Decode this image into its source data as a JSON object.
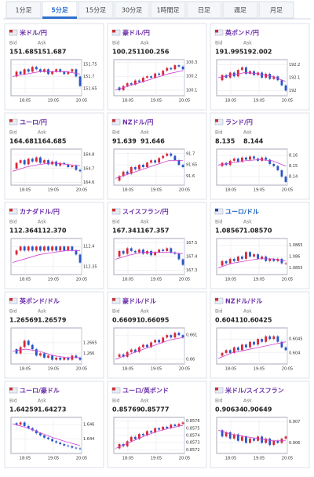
{
  "tabs": [
    "1分足",
    "5分足",
    "15分足",
    "30分足",
    "1時間足",
    "日足",
    "週足",
    "月足"
  ],
  "cards": [
    {
      "title": "米ドル/円",
      "bid_label": "Bid",
      "ask_label": "Ask",
      "bid": "151.685",
      "ask": "151.687",
      "ylim": [
        151.62,
        151.77
      ],
      "yticks": [
        151.75,
        151.7,
        151.65
      ],
      "xticks": [
        "18:05",
        "19:05",
        "20:05"
      ],
      "closes": [
        151.7,
        151.72,
        151.71,
        151.73,
        151.72,
        151.74,
        151.73,
        151.72,
        151.73,
        151.71,
        151.72,
        151.73,
        151.72,
        151.71,
        151.72,
        151.73,
        151.7,
        151.66
      ],
      "ma": [
        151.7,
        151.71,
        151.72,
        151.72,
        151.72,
        151.71
      ]
    },
    {
      "title": "豪ドル/円",
      "bid_label": "Bid",
      "ask_label": "Ask",
      "bid": "100.251",
      "ask": "100.256",
      "ylim": [
        100.06,
        100.32
      ],
      "yticks": [
        100.3,
        100.2,
        100.1
      ],
      "xticks": [
        "18:05",
        "19:05",
        "20:05"
      ],
      "closes": [
        100.12,
        100.1,
        100.13,
        100.15,
        100.14,
        100.17,
        100.16,
        100.19,
        100.2,
        100.19,
        100.22,
        100.21,
        100.24,
        100.26,
        100.25,
        100.28,
        100.27,
        100.25
      ],
      "ma": [
        100.1,
        100.13,
        100.16,
        100.19,
        100.22,
        100.24
      ]
    },
    {
      "title": "英ポンド/円",
      "bid_label": "Bid",
      "ask_label": "Ask",
      "bid": "191.995",
      "ask": "192.002",
      "ylim": [
        191.96,
        192.24
      ],
      "yticks": [
        192.2,
        192.1,
        192
      ],
      "xticks": [
        "18:05",
        "19:05",
        "20:05"
      ],
      "closes": [
        192.08,
        192.12,
        192.1,
        192.14,
        192.11,
        192.16,
        192.18,
        192.13,
        192.15,
        192.12,
        192.14,
        192.1,
        192.13,
        192.09,
        192.11,
        192.08,
        192.04,
        192.0
      ],
      "ma": [
        192.1,
        192.12,
        192.14,
        192.13,
        192.11,
        192.07
      ]
    },
    {
      "title": "ユーロ/円",
      "bid_label": "Bid",
      "ask_label": "Ask",
      "bid": "164.681",
      "ask": "164.685",
      "ylim": [
        164.58,
        164.84
      ],
      "yticks": [
        164.8,
        164.7,
        164.6
      ],
      "xticks": [
        "18:05",
        "19:05",
        "20:05"
      ],
      "closes": [
        164.7,
        164.74,
        164.76,
        164.73,
        164.77,
        164.75,
        164.78,
        164.74,
        164.76,
        164.73,
        164.75,
        164.72,
        164.74,
        164.73,
        164.71,
        164.72,
        164.69,
        164.68
      ],
      "ma": [
        164.68,
        164.71,
        164.73,
        164.74,
        164.73,
        164.72
      ]
    },
    {
      "title": "NZドル/円",
      "bid_label": "Bid",
      "ask_label": "Ask",
      "bid": "91.639",
      "ask": "91.646",
      "ylim": [
        91.56,
        91.72
      ],
      "yticks": [
        91.7,
        91.65,
        91.6
      ],
      "xticks": [
        "18:05",
        "19:05",
        "20:05"
      ],
      "closes": [
        91.58,
        91.6,
        91.62,
        91.61,
        91.64,
        91.63,
        91.65,
        91.64,
        91.66,
        91.67,
        91.66,
        91.68,
        91.69,
        91.7,
        91.69,
        91.67,
        91.65,
        91.64
      ],
      "ma": [
        91.59,
        91.61,
        91.63,
        91.65,
        91.67,
        91.67
      ]
    },
    {
      "title": "ランド/円",
      "bid_label": "Bid",
      "ask_label": "Ask",
      "bid": "8.135",
      "ask": "8.144",
      "ylim": [
        8.132,
        8.166
      ],
      "yticks": [
        8.16,
        8.15,
        8.14
      ],
      "xticks": [
        "18:05",
        "19:05",
        "20:05"
      ],
      "closes": [
        8.15,
        8.153,
        8.151,
        8.155,
        8.157,
        8.154,
        8.158,
        8.156,
        8.159,
        8.157,
        8.155,
        8.158,
        8.156,
        8.152,
        8.15,
        8.146,
        8.14,
        8.135
      ],
      "ma": [
        8.151,
        8.153,
        8.155,
        8.156,
        8.155,
        8.15
      ]
    },
    {
      "title": "カナダドル/円",
      "bid_label": "Bid",
      "ask_label": "Ask",
      "bid": "112.364",
      "ask": "112.370",
      "ylim": [
        112.33,
        112.42
      ],
      "yticks": [
        112.4,
        112.35
      ],
      "xticks": [
        "18:05",
        "19:05",
        "20:05"
      ],
      "closes": [
        112.38,
        112.39,
        112.4,
        112.39,
        112.4,
        112.39,
        112.4,
        112.39,
        112.4,
        112.39,
        112.4,
        112.39,
        112.4,
        112.39,
        112.4,
        112.39,
        112.38,
        112.36
      ],
      "ma": [
        112.36,
        112.37,
        112.38,
        112.385,
        112.39,
        112.39
      ]
    },
    {
      "title": "スイスフラン/円",
      "bid_label": "Bid",
      "ask_label": "Ask",
      "bid": "167.341",
      "ask": "167.357",
      "ylim": [
        167.27,
        167.53
      ],
      "yticks": [
        167.5,
        167.4,
        167.3
      ],
      "xticks": [
        "18:05",
        "19:05",
        "20:05"
      ],
      "closes": [
        167.4,
        167.44,
        167.42,
        167.46,
        167.44,
        167.43,
        167.45,
        167.42,
        167.44,
        167.41,
        167.43,
        167.45,
        167.44,
        167.46,
        167.43,
        167.42,
        167.38,
        167.34
      ],
      "ma": [
        167.38,
        167.41,
        167.43,
        167.43,
        167.43,
        167.42
      ]
    },
    {
      "title": "ユーロ/ドル",
      "bid_label": "Bid",
      "ask_label": "Ask",
      "bid": "1.08567",
      "ask": "1.08570",
      "ylim": [
        1.0852,
        1.0868
      ],
      "yticks": [
        1.0865,
        1.086,
        1.0855
      ],
      "xticks": [
        "18:05",
        "19:05",
        "20:05"
      ],
      "closes": [
        1.0856,
        1.0858,
        1.0857,
        1.0859,
        1.0858,
        1.086,
        1.0859,
        1.0862,
        1.086,
        1.0861,
        1.0859,
        1.086,
        1.0858,
        1.0859,
        1.0858,
        1.0859,
        1.0857,
        1.0857
      ],
      "ma": [
        1.0855,
        1.0857,
        1.0858,
        1.0859,
        1.0859,
        1.0858
      ]
    },
    {
      "title": "英ポンド/ドル",
      "bid_label": "Bid",
      "ask_label": "Ask",
      "bid": "1.26569",
      "ask": "1.26579",
      "ylim": [
        1.2655,
        1.2672
      ],
      "yticks": [
        1.2665,
        1.266
      ],
      "xticks": [
        "18:05",
        "19:05",
        "20:05"
      ],
      "closes": [
        1.2662,
        1.266,
        1.2663,
        1.2666,
        1.2664,
        1.2662,
        1.2659,
        1.266,
        1.2658,
        1.2659,
        1.2657,
        1.2658,
        1.2657,
        1.2658,
        1.2657,
        1.2659,
        1.2658,
        1.2657
      ],
      "ma": [
        1.2661,
        1.2662,
        1.2661,
        1.2659,
        1.2658,
        1.2658
      ]
    },
    {
      "title": "豪ドル/ドル",
      "bid_label": "Bid",
      "ask_label": "Ask",
      "bid": "0.66091",
      "ask": "0.66095",
      "ylim": [
        0.6598,
        0.6613
      ],
      "yticks": [
        0.661,
        0.66
      ],
      "xticks": [
        "18:05",
        "19:05",
        "20:05"
      ],
      "closes": [
        0.6601,
        0.6602,
        0.6601,
        0.6603,
        0.6604,
        0.6603,
        0.6605,
        0.6606,
        0.6605,
        0.6607,
        0.6608,
        0.6607,
        0.6609,
        0.661,
        0.6609,
        0.6611,
        0.661,
        0.6609
      ],
      "ma": [
        0.66,
        0.6602,
        0.6604,
        0.6606,
        0.6608,
        0.6609
      ]
    },
    {
      "title": "NZドル/ドル",
      "bid_label": "Bid",
      "ask_label": "Ask",
      "bid": "0.60411",
      "ask": "0.60425",
      "ylim": [
        0.6036,
        0.6049
      ],
      "yticks": [
        0.6045,
        0.604
      ],
      "xticks": [
        "18:05",
        "19:05",
        "20:05"
      ],
      "closes": [
        0.6039,
        0.604,
        0.6041,
        0.604,
        0.6042,
        0.6041,
        0.6043,
        0.6042,
        0.6044,
        0.6043,
        0.6045,
        0.6044,
        0.6046,
        0.6045,
        0.6046,
        0.6044,
        0.6042,
        0.6041
      ],
      "ma": [
        0.6038,
        0.604,
        0.6041,
        0.6042,
        0.6043,
        0.6044
      ]
    },
    {
      "title": "ユーロ/豪ドル",
      "bid_label": "Bid",
      "ask_label": "Ask",
      "bid": "1.64259",
      "ask": "1.64273",
      "ylim": [
        1.642,
        1.647
      ],
      "yticks": [
        1.646,
        1.644
      ],
      "xticks": [
        "18:05",
        "19:05",
        "20:05"
      ],
      "closes": [
        1.6462,
        1.646,
        1.6463,
        1.6458,
        1.6455,
        1.6452,
        1.6448,
        1.6445,
        1.6442,
        1.644,
        1.6437,
        1.6435,
        1.6433,
        1.6431,
        1.643,
        1.6428,
        1.6427,
        1.6426
      ],
      "ma": [
        1.6461,
        1.6456,
        1.6449,
        1.6442,
        1.6436,
        1.6431
      ]
    },
    {
      "title": "ユーロ/英ポンド",
      "bid_label": "Bid",
      "ask_label": "Ask",
      "bid": "0.85769",
      "ask": "0.85777",
      "ylim": [
        0.85715,
        0.85765
      ],
      "yticks": [
        0.8576,
        0.8575,
        0.8574,
        0.8573,
        0.8572
      ],
      "xticks": [
        "18:05",
        "19:05",
        "20:05"
      ],
      "closes": [
        0.85722,
        0.85728,
        0.85725,
        0.85732,
        0.85738,
        0.85735,
        0.85742,
        0.8574,
        0.85746,
        0.85744,
        0.8575,
        0.85748,
        0.85752,
        0.8575,
        0.85755,
        0.85753,
        0.85756,
        0.85758
      ],
      "ma": [
        0.85722,
        0.8573,
        0.85738,
        0.85745,
        0.8575,
        0.85754
      ]
    },
    {
      "title": "米ドル/スイスフラン",
      "bid_label": "Bid",
      "ask_label": "Ask",
      "bid": "0.90634",
      "ask": "0.90649",
      "ylim": [
        0.9055,
        0.9072
      ],
      "yticks": [
        0.907,
        0.906
      ],
      "xticks": [
        "18:05",
        "19:05",
        "20:05"
      ],
      "closes": [
        0.9066,
        0.9063,
        0.9065,
        0.9062,
        0.9064,
        0.9061,
        0.9063,
        0.906,
        0.9062,
        0.9061,
        0.9063,
        0.906,
        0.9062,
        0.9059,
        0.9061,
        0.906,
        0.9062,
        0.9063
      ],
      "ma": [
        0.9066,
        0.9064,
        0.9063,
        0.9062,
        0.9061,
        0.9061
      ]
    }
  ]
}
